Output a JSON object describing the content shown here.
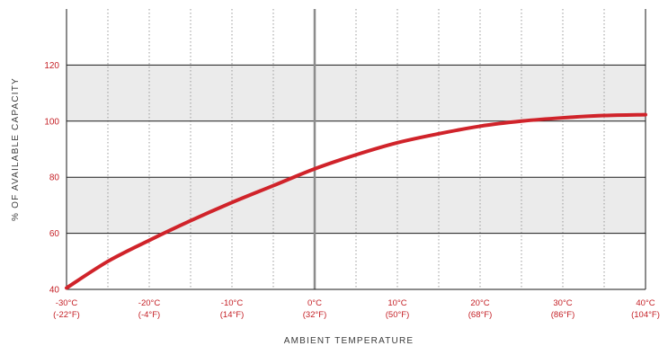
{
  "chart_data": {
    "type": "line",
    "title": "",
    "xlabel": "AMBIENT TEMPERATURE",
    "ylabel": "% OF AVAILABLE CAPACITY",
    "xlim": [
      -30,
      40
    ],
    "ylim": [
      40,
      140
    ],
    "y_ticks": [
      40,
      60,
      80,
      100,
      120
    ],
    "x_ticks": [
      {
        "value": -30,
        "label_c": "-30°C",
        "label_f": "(-22°F)"
      },
      {
        "value": -20,
        "label_c": "-20°C",
        "label_f": "(-4°F)"
      },
      {
        "value": -10,
        "label_c": "-10°C",
        "label_f": "(14°F)"
      },
      {
        "value": 0,
        "label_c": "0°C",
        "label_f": "(32°F)"
      },
      {
        "value": 10,
        "label_c": "10°C",
        "label_f": "(50°F)"
      },
      {
        "value": 20,
        "label_c": "20°C",
        "label_f": "(68°F)"
      },
      {
        "value": 30,
        "label_c": "30°C",
        "label_f": "(86°F)"
      },
      {
        "value": 40,
        "label_c": "40°C",
        "label_f": "(104°F)"
      }
    ],
    "minor_x_gridlines": [
      -25,
      -15,
      -5,
      5,
      15,
      25,
      35
    ],
    "shaded_bands": [
      [
        60,
        80
      ],
      [
        100,
        120
      ]
    ],
    "grid": true,
    "series": [
      {
        "color": "#d0232a",
        "x": [
          -30,
          -25,
          -20,
          -15,
          -10,
          -5,
          0,
          5,
          10,
          15,
          20,
          25,
          30,
          35,
          40
        ],
        "y": [
          40.5,
          50,
          57.5,
          64.5,
          71,
          77,
          83,
          88,
          92.3,
          95.5,
          98.2,
          100,
          101.2,
          102,
          102.3
        ]
      }
    ],
    "colors": {
      "tick_label": "#c41e24",
      "band": "#ebebeb",
      "grid_major": "#1a1a1a",
      "grid_minor": "#9a9a9a",
      "zero_line": "#8c8c8c"
    }
  }
}
